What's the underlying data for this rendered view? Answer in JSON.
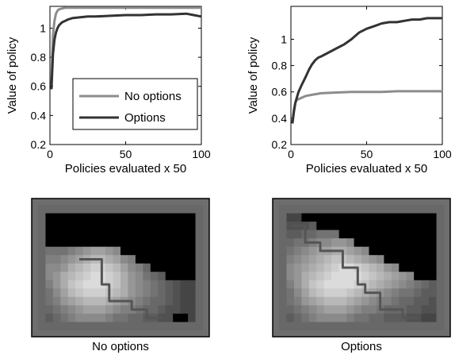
{
  "chart_data": [
    {
      "type": "line",
      "xlabel": "Policies evaluated x 50",
      "ylabel": "Value of policy",
      "xlim": [
        0,
        100
      ],
      "ylim": [
        0.2,
        1.15
      ],
      "xticks": [
        "0",
        "50",
        "100"
      ],
      "yticks": [
        "0.2",
        "0.4",
        "0.6",
        "0.8",
        "1"
      ],
      "legend": {
        "placement": "center-right",
        "entries": [
          "No options",
          "Options"
        ]
      },
      "series": [
        {
          "name": "No options",
          "color": "#8c8c8c",
          "x": [
            1,
            2,
            3,
            4,
            5,
            6,
            8,
            10,
            12,
            15,
            20,
            30,
            40,
            50,
            60,
            70,
            80,
            90,
            100
          ],
          "values": [
            0.6,
            0.95,
            1.05,
            1.1,
            1.12,
            1.13,
            1.135,
            1.14,
            1.14,
            1.14,
            1.14,
            1.14,
            1.14,
            1.14,
            1.14,
            1.14,
            1.14,
            1.14,
            1.14
          ]
        },
        {
          "name": "Options",
          "color": "#333333",
          "x": [
            1,
            2,
            3,
            4,
            5,
            6,
            8,
            10,
            12,
            15,
            20,
            25,
            30,
            40,
            50,
            60,
            70,
            80,
            90,
            95,
            100
          ],
          "values": [
            0.58,
            0.82,
            0.92,
            0.97,
            1.0,
            1.02,
            1.04,
            1.05,
            1.06,
            1.07,
            1.075,
            1.08,
            1.08,
            1.085,
            1.09,
            1.09,
            1.095,
            1.095,
            1.1,
            1.09,
            1.08
          ]
        }
      ]
    },
    {
      "type": "line",
      "xlabel": "Policies evaluated x 50",
      "ylabel": "Value of policy",
      "xlim": [
        0,
        100
      ],
      "ylim": [
        0.2,
        1.25
      ],
      "xticks": [
        "0",
        "50",
        "100"
      ],
      "yticks": [
        "0.2",
        "0.4",
        "0.6",
        "0.8",
        "1"
      ],
      "series": [
        {
          "name": "No options",
          "color": "#8c8c8c",
          "x": [
            1,
            2,
            3,
            4,
            6,
            8,
            10,
            15,
            20,
            30,
            40,
            50,
            60,
            70,
            80,
            90,
            100
          ],
          "values": [
            0.37,
            0.47,
            0.52,
            0.54,
            0.55,
            0.56,
            0.57,
            0.58,
            0.59,
            0.595,
            0.6,
            0.6,
            0.6,
            0.605,
            0.605,
            0.605,
            0.605
          ]
        },
        {
          "name": "Options",
          "color": "#333333",
          "x": [
            1,
            2,
            3,
            5,
            7,
            10,
            12,
            14,
            16,
            18,
            20,
            25,
            30,
            35,
            40,
            45,
            50,
            55,
            60,
            65,
            70,
            75,
            80,
            85,
            90,
            95,
            100
          ],
          "values": [
            0.36,
            0.45,
            0.52,
            0.6,
            0.65,
            0.72,
            0.77,
            0.81,
            0.84,
            0.86,
            0.87,
            0.9,
            0.93,
            0.96,
            1.0,
            1.05,
            1.08,
            1.1,
            1.12,
            1.13,
            1.13,
            1.14,
            1.15,
            1.15,
            1.16,
            1.16,
            1.16
          ]
        }
      ]
    },
    {
      "type": "heatmap",
      "caption": "No options",
      "grid": [
        [
          0.45,
          0.45,
          0.45,
          0.45,
          0.45,
          0.45,
          0.45,
          0.45,
          0.45,
          0.45,
          0.45,
          0.45,
          0.45,
          0.45,
          0.45,
          0.45,
          0.45,
          0.45,
          0.45,
          0.45,
          0.45,
          0.45
        ],
        [
          0.45,
          0,
          0,
          0,
          0,
          0,
          0,
          0,
          0,
          0,
          0,
          0,
          0,
          0,
          0,
          0,
          0,
          0,
          0,
          0,
          0,
          0.45
        ],
        [
          0.45,
          0,
          0,
          0,
          0,
          0,
          0,
          0,
          0,
          0,
          0,
          0,
          0,
          0,
          0,
          0,
          0,
          0,
          0,
          0,
          0,
          0.45
        ],
        [
          0.45,
          0,
          0,
          0,
          0,
          0,
          0,
          0,
          0,
          0,
          0,
          0,
          0,
          0,
          0,
          0,
          0,
          0,
          0,
          0,
          0,
          0.45
        ],
        [
          0.45,
          0,
          0,
          0,
          0,
          0,
          0,
          0,
          0,
          0,
          0,
          0,
          0,
          0,
          0,
          0,
          0,
          0,
          0,
          0,
          0,
          0.45
        ],
        [
          0.45,
          0.5,
          0.5,
          0.5,
          0.55,
          0.6,
          0.65,
          0.7,
          0.7,
          0.65,
          0.6,
          0,
          0,
          0,
          0,
          0,
          0,
          0,
          0,
          0,
          0,
          0.45
        ],
        [
          0.45,
          0.55,
          0.55,
          0.6,
          0.65,
          0.7,
          0.75,
          0.8,
          0.8,
          0.75,
          0.7,
          0.6,
          0.55,
          0,
          0,
          0,
          0,
          0,
          0,
          0,
          0,
          0.45
        ],
        [
          0.45,
          0.6,
          0.6,
          0.65,
          0.75,
          0.8,
          0.85,
          0.9,
          0.9,
          0.85,
          0.8,
          0.7,
          0.6,
          0.55,
          0.45,
          0,
          0,
          0,
          0,
          0,
          0,
          0.45
        ],
        [
          0.45,
          0.6,
          0.65,
          0.75,
          0.8,
          0.85,
          0.9,
          0.95,
          0.95,
          0.9,
          0.85,
          0.75,
          0.65,
          0.6,
          0.5,
          0.45,
          0.4,
          0,
          0,
          0,
          0,
          0.45
        ],
        [
          0.45,
          0.55,
          0.65,
          0.75,
          0.85,
          0.9,
          0.95,
          0.95,
          0.95,
          0.9,
          0.85,
          0.75,
          0.65,
          0.6,
          0.55,
          0.5,
          0.45,
          0.4,
          0.35,
          0.3,
          0.3,
          0.45
        ],
        [
          0.45,
          0.5,
          0.6,
          0.7,
          0.8,
          0.85,
          0.9,
          0.9,
          0.9,
          0.85,
          0.8,
          0.75,
          0.65,
          0.6,
          0.55,
          0.5,
          0.45,
          0.4,
          0.35,
          0.3,
          0.3,
          0.45
        ],
        [
          0.45,
          0.5,
          0.55,
          0.65,
          0.7,
          0.75,
          0.8,
          0.8,
          0.8,
          0.75,
          0.7,
          0.65,
          0.6,
          0.55,
          0.5,
          0.45,
          0.45,
          0.4,
          0.35,
          0.3,
          0.3,
          0.45
        ],
        [
          0.45,
          0.45,
          0.5,
          0.55,
          0.6,
          0.65,
          0.7,
          0.7,
          0.7,
          0.65,
          0.6,
          0.55,
          0.55,
          0.5,
          0.45,
          0.45,
          0.4,
          0.35,
          0.35,
          0.3,
          0.3,
          0.45
        ],
        [
          0.45,
          0.4,
          0.45,
          0.5,
          0.55,
          0.6,
          0.6,
          0.6,
          0.6,
          0.55,
          0.5,
          0.5,
          0.45,
          0.45,
          0.4,
          0.4,
          0.35,
          0.35,
          0,
          0,
          0.3,
          0.45
        ],
        [
          0.45,
          0.45,
          0.45,
          0.45,
          0.45,
          0.45,
          0.45,
          0.45,
          0.45,
          0.45,
          0.45,
          0.45,
          0.45,
          0.45,
          0.45,
          0.45,
          0.45,
          0.45,
          0.45,
          0.45,
          0.45,
          0.45
        ]
      ]
    },
    {
      "type": "heatmap",
      "caption": "Options",
      "grid": [
        [
          0.45,
          0.45,
          0.45,
          0.45,
          0.45,
          0.45,
          0.45,
          0.45,
          0.45,
          0.45,
          0.45,
          0.45,
          0.45,
          0.45,
          0.45,
          0.45,
          0.45,
          0.45,
          0.45,
          0.45,
          0.45,
          0.45
        ],
        [
          0.45,
          0.3,
          0.3,
          0,
          0,
          0,
          0,
          0,
          0,
          0,
          0,
          0,
          0,
          0,
          0,
          0,
          0,
          0,
          0,
          0,
          0,
          0.45
        ],
        [
          0.45,
          0.35,
          0.35,
          0.35,
          0.4,
          0,
          0,
          0,
          0,
          0,
          0,
          0,
          0,
          0,
          0,
          0,
          0,
          0,
          0,
          0,
          0,
          0.45
        ],
        [
          0.45,
          0.4,
          0.4,
          0.45,
          0.45,
          0.5,
          0.5,
          0.5,
          0,
          0,
          0,
          0,
          0,
          0,
          0,
          0,
          0,
          0,
          0,
          0,
          0,
          0.45
        ],
        [
          0.45,
          0.45,
          0.5,
          0.5,
          0.55,
          0.6,
          0.6,
          0.65,
          0.65,
          0.6,
          0,
          0,
          0,
          0,
          0,
          0,
          0,
          0,
          0,
          0,
          0,
          0.45
        ],
        [
          0.45,
          0.5,
          0.55,
          0.6,
          0.65,
          0.7,
          0.7,
          0.75,
          0.75,
          0.7,
          0.65,
          0.6,
          0,
          0,
          0,
          0,
          0,
          0,
          0,
          0,
          0,
          0.45
        ],
        [
          0.45,
          0.55,
          0.6,
          0.65,
          0.7,
          0.75,
          0.8,
          0.85,
          0.85,
          0.8,
          0.75,
          0.7,
          0.65,
          0.6,
          0,
          0,
          0,
          0,
          0,
          0,
          0,
          0.45
        ],
        [
          0.45,
          0.6,
          0.65,
          0.7,
          0.75,
          0.8,
          0.85,
          0.9,
          0.95,
          0.95,
          0.9,
          0.85,
          0.8,
          0.75,
          0.65,
          0.6,
          0,
          0,
          0,
          0,
          0,
          0.45
        ],
        [
          0.45,
          0.6,
          0.65,
          0.75,
          0.8,
          0.85,
          0.9,
          0.95,
          0.95,
          0.95,
          0.95,
          0.9,
          0.85,
          0.8,
          0.75,
          0.7,
          0.65,
          0.6,
          0,
          0,
          0,
          0.45
        ],
        [
          0.45,
          0.55,
          0.65,
          0.75,
          0.85,
          0.9,
          0.95,
          0.95,
          0.95,
          0.95,
          0.9,
          0.85,
          0.8,
          0.75,
          0.7,
          0.65,
          0.6,
          0.55,
          0.5,
          0.45,
          0.4,
          0.45
        ],
        [
          0.45,
          0.5,
          0.6,
          0.7,
          0.8,
          0.85,
          0.9,
          0.9,
          0.9,
          0.85,
          0.8,
          0.75,
          0.7,
          0.65,
          0.6,
          0.55,
          0.5,
          0.5,
          0.45,
          0.4,
          0.4,
          0.45
        ],
        [
          0.45,
          0.5,
          0.55,
          0.65,
          0.7,
          0.75,
          0.8,
          0.8,
          0.8,
          0.75,
          0.7,
          0.65,
          0.6,
          0.55,
          0.55,
          0.5,
          0.45,
          0.45,
          0.4,
          0.4,
          0.35,
          0.45
        ],
        [
          0.45,
          0.45,
          0.5,
          0.55,
          0.6,
          0.65,
          0.7,
          0.7,
          0.7,
          0.65,
          0.6,
          0.55,
          0.55,
          0.5,
          0.45,
          0.45,
          0.45,
          0.4,
          0.4,
          0.35,
          0.35,
          0.45
        ],
        [
          0.45,
          0.4,
          0.45,
          0.5,
          0.55,
          0.6,
          0.6,
          0.6,
          0.6,
          0.55,
          0.5,
          0.5,
          0.45,
          0.45,
          0.4,
          0.4,
          0.4,
          0.35,
          0.35,
          0.3,
          0.3,
          0.45
        ],
        [
          0.45,
          0.45,
          0.45,
          0.45,
          0.45,
          0.45,
          0.45,
          0.45,
          0.45,
          0.45,
          0.45,
          0.45,
          0.45,
          0.45,
          0.45,
          0.45,
          0.45,
          0.45,
          0.45,
          0.45,
          0.45,
          0.45
        ]
      ]
    }
  ]
}
